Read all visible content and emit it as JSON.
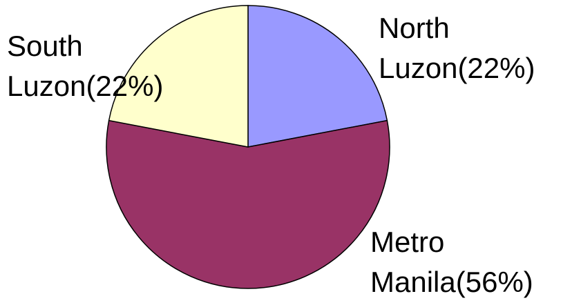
{
  "chart_data": {
    "type": "pie",
    "categories": [
      "North Luzon",
      "Metro Manila",
      "South Luzon"
    ],
    "values": [
      22,
      56,
      22
    ],
    "value_labels": [
      "(22%)",
      "(56%)",
      "(22%)"
    ],
    "colors": [
      "#9999ff",
      "#993366",
      "#ffffcc"
    ]
  }
}
